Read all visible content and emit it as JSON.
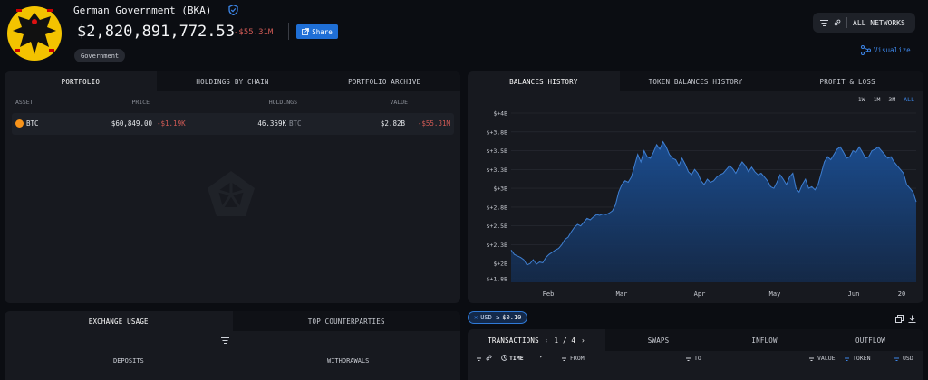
{
  "entity": {
    "name": "German Government (BKA)",
    "balance": "$2,820,891,772.53",
    "change": "-$55.31M",
    "share_label": "Share",
    "tag": "Government"
  },
  "network_selector": {
    "label": "ALL NETWORKS"
  },
  "visualize_label": "Visualize",
  "portfolio": {
    "tabs": [
      "PORTFOLIO",
      "HOLDINGS BY CHAIN",
      "PORTFOLIO ARCHIVE"
    ],
    "columns": [
      "ASSET",
      "PRICE",
      "HOLDINGS",
      "VALUE"
    ],
    "rows": [
      {
        "asset": "BTC",
        "price": "$60,849.00",
        "price_change": "-$1.19K",
        "holdings": "46.359K",
        "holdings_unit": "BTC",
        "value": "$2.82B",
        "value_change": "-$55.31M"
      }
    ]
  },
  "balances": {
    "tabs": [
      "BALANCES HISTORY",
      "TOKEN BALANCES HISTORY",
      "PROFIT & LOSS"
    ],
    "ranges": [
      "1W",
      "1M",
      "3M",
      "ALL"
    ],
    "active_range": "ALL"
  },
  "chart_data": {
    "type": "area",
    "y_ticks": [
      "$+1.8B",
      "$+2B",
      "$+2.3B",
      "$+2.5B",
      "$+2.8B",
      "$+3B",
      "$+3.3B",
      "$+3.5B",
      "$+3.8B",
      "$+4B"
    ],
    "x_ticks": [
      "Feb",
      "Mar",
      "Apr",
      "May",
      "Jun",
      "20"
    ],
    "ylim": [
      1.75,
      4.0
    ],
    "values": [
      2.18,
      2.12,
      2.1,
      2.08,
      2.05,
      1.98,
      2.0,
      2.05,
      1.99,
      2.02,
      2.01,
      2.08,
      2.12,
      2.15,
      2.18,
      2.2,
      2.25,
      2.32,
      2.35,
      2.42,
      2.48,
      2.52,
      2.5,
      2.55,
      2.6,
      2.58,
      2.62,
      2.65,
      2.64,
      2.66,
      2.65,
      2.67,
      2.7,
      2.78,
      2.95,
      3.05,
      3.1,
      3.08,
      3.15,
      3.3,
      3.45,
      3.35,
      3.5,
      3.42,
      3.4,
      3.48,
      3.58,
      3.52,
      3.62,
      3.55,
      3.45,
      3.4,
      3.38,
      3.3,
      3.4,
      3.32,
      3.22,
      3.18,
      3.25,
      3.2,
      3.1,
      3.05,
      3.12,
      3.08,
      3.1,
      3.15,
      3.18,
      3.2,
      3.25,
      3.3,
      3.26,
      3.2,
      3.28,
      3.35,
      3.3,
      3.22,
      3.28,
      3.22,
      3.18,
      3.2,
      3.15,
      3.1,
      3.02,
      3.0,
      3.08,
      3.18,
      3.12,
      3.05,
      3.15,
      3.2,
      3.0,
      2.95,
      3.05,
      3.12,
      3.0,
      3.02,
      2.98,
      3.05,
      3.2,
      3.35,
      3.42,
      3.38,
      3.45,
      3.52,
      3.55,
      3.48,
      3.4,
      3.42,
      3.5,
      3.48,
      3.55,
      3.48,
      3.4,
      3.42,
      3.5,
      3.52,
      3.55,
      3.5,
      3.45,
      3.4,
      3.42,
      3.35,
      3.3,
      3.25,
      3.2,
      3.05,
      3.0,
      2.95,
      2.82
    ]
  },
  "exchange": {
    "tabs": [
      "EXCHANGE USAGE",
      "TOP COUNTERPARTIES"
    ],
    "columns": [
      "DEPOSITS",
      "WITHDRAWALS"
    ]
  },
  "filter_chip": {
    "prefix": "USD ≥",
    "value": "$0.10"
  },
  "transactions": {
    "tabs": [
      "TRANSACTIONS",
      "SWAPS",
      "INFLOW",
      "OUTFLOW"
    ],
    "page": "1 / 4",
    "columns": [
      "TIME",
      "FROM",
      "TO",
      "VALUE",
      "TOKEN",
      "USD"
    ]
  },
  "colors": {
    "accent": "#2f7ad8",
    "negative": "#d05a55",
    "area_line": "#3f7fd1",
    "area_fill": "#1b4f94"
  }
}
